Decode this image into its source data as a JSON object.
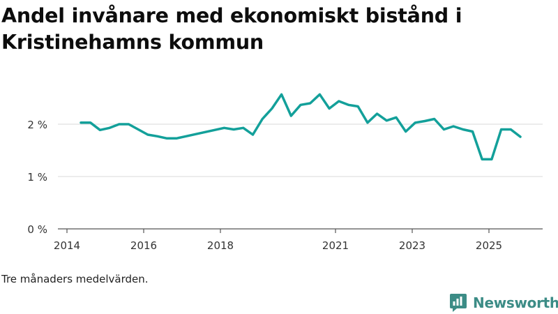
{
  "chart_data": {
    "type": "line",
    "title": "Andel invånare med ekonomiskt bistånd i Kristinehamns kommun",
    "xlabel": "",
    "ylabel": "",
    "ylim": [
      0,
      3
    ],
    "xlim": [
      2013.9,
      2026.4
    ],
    "yticks": [
      {
        "value": 0,
        "label": "0 %"
      },
      {
        "value": 1,
        "label": "1 %"
      },
      {
        "value": 2,
        "label": "2 %"
      }
    ],
    "xticks": [
      {
        "value": 2014,
        "label": "2014"
      },
      {
        "value": 2016,
        "label": "2016"
      },
      {
        "value": 2018,
        "label": "2018"
      },
      {
        "value": 2021,
        "label": "2021"
      },
      {
        "value": 2023,
        "label": "2023"
      },
      {
        "value": 2025,
        "label": "2025"
      }
    ],
    "grid": true,
    "line_color": "#13a09a",
    "series": [
      {
        "name": "Andel invånare med ekonomiskt bistånd",
        "x": [
          2014.375,
          2014.625,
          2014.875,
          2015.125,
          2015.375,
          2015.625,
          2015.875,
          2016.125,
          2016.375,
          2016.625,
          2016.875,
          2017.125,
          2017.375,
          2017.625,
          2017.875,
          2018.125,
          2018.375,
          2018.625,
          2018.875,
          2019.125,
          2019.375,
          2019.625,
          2019.875,
          2020.125,
          2020.375,
          2020.625,
          2020.875,
          2021.125,
          2021.375,
          2021.625,
          2021.875,
          2022.125,
          2022.375,
          2022.625,
          2022.875,
          2023.125,
          2023.375,
          2023.625,
          2023.875,
          2024.125,
          2024.375,
          2024.625,
          2024.875,
          2025.125,
          2025.375,
          2025.625,
          2025.875
        ],
        "values": [
          2.03,
          2.03,
          1.89,
          1.93,
          2.0,
          2.0,
          1.9,
          1.8,
          1.77,
          1.73,
          1.73,
          1.77,
          1.81,
          1.85,
          1.89,
          1.93,
          1.9,
          1.93,
          1.8,
          2.1,
          2.3,
          2.57,
          2.16,
          2.37,
          2.4,
          2.57,
          2.3,
          2.44,
          2.37,
          2.34,
          2.03,
          2.2,
          2.07,
          2.13,
          1.86,
          2.03,
          2.06,
          2.1,
          1.9,
          1.96,
          1.9,
          1.86,
          1.33,
          1.33,
          1.9,
          1.9,
          1.76
        ]
      }
    ]
  },
  "footnote": "Tre månaders medelvärden.",
  "brand": {
    "name": "Newsworthy",
    "icon": "newsworthy-logo-icon",
    "color": "#3c8c86"
  }
}
